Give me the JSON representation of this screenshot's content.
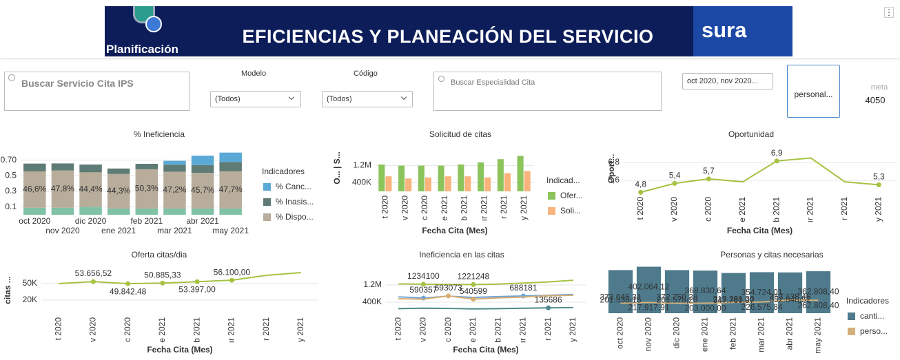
{
  "header": {
    "title": "EFICIENCIAS Y PLANEACIÓN DEL SERVICIO",
    "brand_left": "Planificación",
    "brand_right": "sura",
    "menu": "⋮"
  },
  "filters": {
    "search_service": "Buscar Servicio Cita IPS",
    "modelo_label": "Modelo",
    "modelo_value": "(Todos)",
    "codigo_label": "Código",
    "codigo_value": "(Todos)",
    "search_specialty": "Buscar Especialidad Cita",
    "date_value": "oct 2020, nov 2020...",
    "button": "personal...",
    "meta_label": "meta",
    "meta_value": 4050
  },
  "chart_data": [
    {
      "type": "stacked_bar",
      "title": "% Ineficiencia",
      "categories": [
        "oct 2020",
        "nov 2020",
        "dic 2020",
        "ene 2021",
        "feb 2021",
        "mar 2021",
        "abr 2021",
        "may 2021"
      ],
      "series": [
        {
          "color": "#7fc2a6",
          "values": [
            0.09,
            0.09,
            0.1,
            0.08,
            0.08,
            0.08,
            0.08,
            0.08
          ]
        },
        {
          "name": "% Dispo...",
          "color": "#b8ad9b",
          "values": [
            0.466,
            0.478,
            0.444,
            0.443,
            0.503,
            0.472,
            0.457,
            0.477
          ],
          "value_labels": [
            "46,6%",
            "47,8%",
            "44,4%",
            "44,3%",
            "50,3%",
            "47,2%",
            "45,7%",
            "47,7%"
          ]
        },
        {
          "name": "% Inasis...",
          "color": "#5f7b75",
          "values": [
            0.1,
            0.09,
            0.1,
            0.07,
            0.07,
            0.09,
            0.1,
            0.12
          ]
        },
        {
          "name": "% Canc...",
          "color": "#5aa9d6",
          "values": [
            0,
            0,
            0,
            0,
            0,
            0.05,
            0.12,
            0.12
          ]
        }
      ],
      "ylim": [
        0,
        0.9
      ],
      "yticks": [
        0.1,
        0.3,
        0.5,
        {
          "value": 0.7,
          "label": "0.70"
        }
      ],
      "legend_title": "Indicadores",
      "grid": true
    },
    {
      "type": "bar",
      "title": "Solicitud de citas",
      "categories": [
        "t 2020",
        "v 2020",
        "c 2020",
        "e 2021",
        "b 2021",
        "ır 2021",
        "r 2021",
        "y 2021"
      ],
      "series": [
        {
          "name": "Ofer...",
          "color": "#8cc45c",
          "values": [
            1250000,
            1200000,
            1200000,
            1200000,
            1250000,
            1350000,
            1500000,
            1650000
          ]
        },
        {
          "name": "Soli...",
          "color": "#f8b47c",
          "values": [
            700000,
            600000,
            650000,
            700000,
            700000,
            650000,
            850000,
            950000
          ]
        }
      ],
      "ylim": [
        0,
        2180000
      ],
      "yticks": [
        {
          "value": 400000,
          "label": "400K"
        },
        {
          "value": 1200000,
          "label": "1.2M"
        }
      ],
      "y_label": "O... | S...",
      "x_label": "Fecha Cita (Mes)",
      "legend_title": "Indicad...",
      "grid": true
    },
    {
      "type": "line",
      "title": "Oportunidad",
      "categories": [
        "t 2020",
        "v 2020",
        "c 2020",
        "e 2021",
        "b 2021",
        "ır 2021",
        "r 2021",
        "y 2021"
      ],
      "series": [
        {
          "color": "#a5c241",
          "values": [
            4.8,
            5.4,
            5.7,
            5.5,
            6.9,
            7.1,
            5.5,
            5.3
          ],
          "value_labels": [
            "4,8",
            "5,4",
            "5,7",
            null,
            "6,9",
            null,
            null,
            "5,3"
          ]
        }
      ],
      "ylim": [
        4.77,
        8.0
      ],
      "yticks": [
        {
          "value": 5.6,
          "label": "5,6"
        },
        {
          "value": 6.8,
          "label": "6,8"
        }
      ],
      "y_label": "Oport...",
      "x_label": "Fecha Cita (Mes)",
      "grid": true
    },
    {
      "type": "line",
      "title": "Oferta citas/dia",
      "categories": [
        "t 2020",
        "v 2020",
        "c 2020",
        "e 2021",
        "b 2021",
        "ır 2021",
        "r 2021",
        "y 2021"
      ],
      "series": [
        {
          "color": "#a5c241",
          "values": [
            50000,
            53656.52,
            49842.48,
            50885.33,
            53397,
            56100,
            65000,
            70000
          ],
          "value_labels": [
            null,
            "53.656,52",
            "49.842,48",
            "50.885,33",
            "53.397,00",
            "56.100,00",
            null,
            null
          ]
        }
      ],
      "ylim": [
        -3750,
        80000
      ],
      "yticks": [
        {
          "value": 20000,
          "label": "20K"
        },
        {
          "value": 50000,
          "label": "50K"
        }
      ],
      "y_label": "citas ...",
      "x_label": "Fecha Cita (Mes)",
      "grid": true
    },
    {
      "type": "line",
      "title": "Ineficiencia en las citas",
      "categories": [
        "t 2020",
        "v 2020",
        "c 2020",
        "e 2021",
        "b 2021",
        "ır 2021",
        "r 2021",
        "y 2021"
      ],
      "series": [
        {
          "color": "#a5c241",
          "values": [
            1250000,
            1234100,
            1225000,
            1221248,
            1240000,
            1290000,
            1340000,
            1420000
          ],
          "value_labels": [
            null,
            "1234100",
            null,
            "1221248",
            null,
            null,
            null,
            null
          ]
        },
        {
          "color": "#6fa3d8",
          "values": [
            650000,
            590357,
            680000,
            620000,
            660000,
            688181,
            720000,
            760000
          ],
          "value_labels": [
            null,
            "590357",
            null,
            null,
            null,
            "688181",
            null,
            null
          ]
        },
        {
          "color": "#d6ae72",
          "values": [
            560000,
            540000,
            693073,
            540599,
            600000,
            640000,
            700000,
            720000
          ],
          "value_labels": [
            null,
            null,
            "693073",
            "540599",
            null,
            null,
            null,
            null
          ]
        },
        {
          "color": "#4e8a8c",
          "values": [
            100000,
            120000,
            110000,
            90000,
            100000,
            120000,
            135686,
            150000
          ],
          "value_labels": [
            null,
            null,
            null,
            null,
            null,
            null,
            "135686",
            null
          ]
        }
      ],
      "ylim": [
        -112000,
        2032000
      ],
      "yticks": [
        {
          "value": 400000,
          "label": "400K"
        },
        {
          "value": 1200000,
          "label": "1.2M"
        }
      ],
      "x_label": "Fecha Cita (Mes)",
      "grid": true
    },
    {
      "type": "combo",
      "title": "Personas y citas necesarias",
      "categories": [
        "oct 2020",
        "nov 2020",
        "dic 2020",
        "ene 2021",
        "feb 2021",
        "mar 2021",
        "abr 2021",
        "may 2021"
      ],
      "series": [
        {
          "name": "canti...",
          "color": "#4e7a8c",
          "values": [
            373046.31,
            402064.12,
            372750.28,
            368830.64,
            347780.97,
            354724.01,
            352848.52,
            362808.4
          ],
          "value_labels": [
            "373.046,31",
            "402.064,12",
            "372.750,28",
            "368.830,64",
            "347.780,97",
            "354.724,01",
            "352.848,52",
            "362.808,40"
          ]
        },
        {
          "name": "perso...",
          "color": "#d3b07a",
          "axis": "y2",
          "values": [
            201538.15,
            217917.91,
            201578.2,
            203000,
            219381.3,
            226575.84,
            267138.45,
            262808.4
          ],
          "value_labels": [
            "201.538,15",
            "217.917,91",
            "201.578,20",
            "203.000,00",
            "219.381,30",
            "226.575,84",
            "267.138,45",
            "262.808,40"
          ]
        }
      ],
      "ylim": [
        0,
        405000
      ],
      "yticks": [],
      "y2lim": [
        0,
        950000
      ],
      "legend_title": "Indicadores",
      "grid": false
    }
  ]
}
